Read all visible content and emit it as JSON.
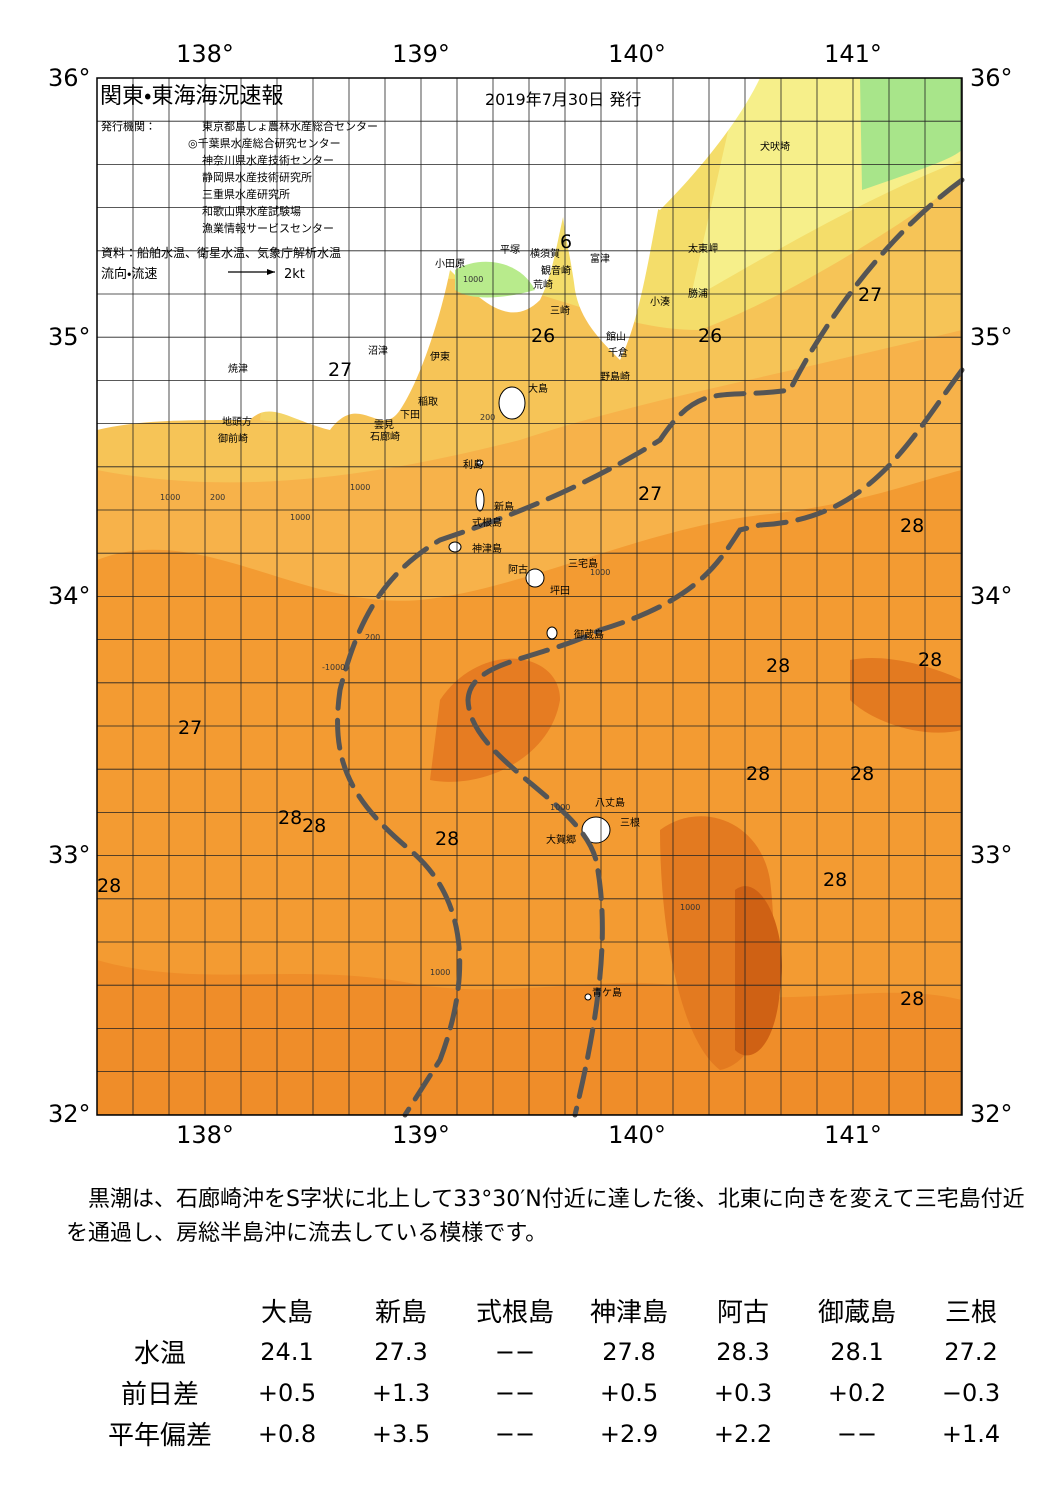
{
  "header": {
    "title": "関東・東海海況速報",
    "date": "2019年7月30日 発行",
    "issuer_label": "発行機関：",
    "issuers": [
      "東京都島しょ農林水産総合センター",
      "◎千葉県水産総合研究センター",
      "神奈川県水産技術センター",
      "静岡県水産技術研究所",
      "三重県水産研究所",
      "和歌山県水産試験場",
      "漁業情報サービスセンター"
    ],
    "source": "資料：船舶水温、衛星水温、気象庁解析水温",
    "legend_label": "流向・流速",
    "legend_speed": "2kt"
  },
  "map": {
    "lon_labels": [
      "138°",
      "139°",
      "140°",
      "141°"
    ],
    "lat_labels": [
      "36°",
      "35°",
      "34°",
      "33°",
      "32°"
    ],
    "places": [
      "犬吠埼",
      "太東岬",
      "勝浦",
      "小湊",
      "富津",
      "横須賀",
      "観音崎",
      "荒崎",
      "三崎",
      "館山",
      "千倉",
      "野島崎",
      "平塚",
      "小田原",
      "沼津",
      "伊東",
      "焼津",
      "稲取",
      "下田",
      "雲見",
      "石廊崎",
      "地頭方",
      "御前崎",
      "大島",
      "利島",
      "新島",
      "式根島",
      "神津島",
      "三宅島",
      "阿古",
      "坪田",
      "御蔵島",
      "八丈島",
      "三根",
      "大賀郷",
      "青ケ島"
    ],
    "temperature_labels": [
      "6",
      "26",
      "26",
      "27",
      "27",
      "27",
      "27",
      "28",
      "28",
      "28",
      "28",
      "28",
      "28",
      "28",
      "28",
      "28",
      "28",
      "28"
    ],
    "depth_labels": [
      "1000",
      "200",
      "200",
      "200",
      "-1000",
      "1000",
      "1000",
      "1000",
      "1000",
      "1000",
      "1000",
      "1000"
    ]
  },
  "summary": "黒潮は、石廊崎沖をS字状に北上して33°30′N付近に達した後、北東に向きを変えて三宅島付近を通過し、房総半島沖に流去している模様です。",
  "table": {
    "columns": [
      "大島",
      "新島",
      "式根島",
      "神津島",
      "阿古",
      "御蔵島",
      "三根"
    ],
    "rows": [
      {
        "label": "水温",
        "values": [
          "24.1",
          "27.3",
          "−−",
          "27.8",
          "28.3",
          "28.1",
          "27.2"
        ]
      },
      {
        "label": "前日差",
        "values": [
          "+0.5",
          "+1.3",
          "−−",
          "+0.5",
          "+0.3",
          "+0.2",
          "−0.3"
        ]
      },
      {
        "label": "平年偏差",
        "values": [
          "+0.8",
          "+3.5",
          "−−",
          "+2.9",
          "+2.2",
          "−−",
          "+1.4"
        ]
      }
    ]
  }
}
